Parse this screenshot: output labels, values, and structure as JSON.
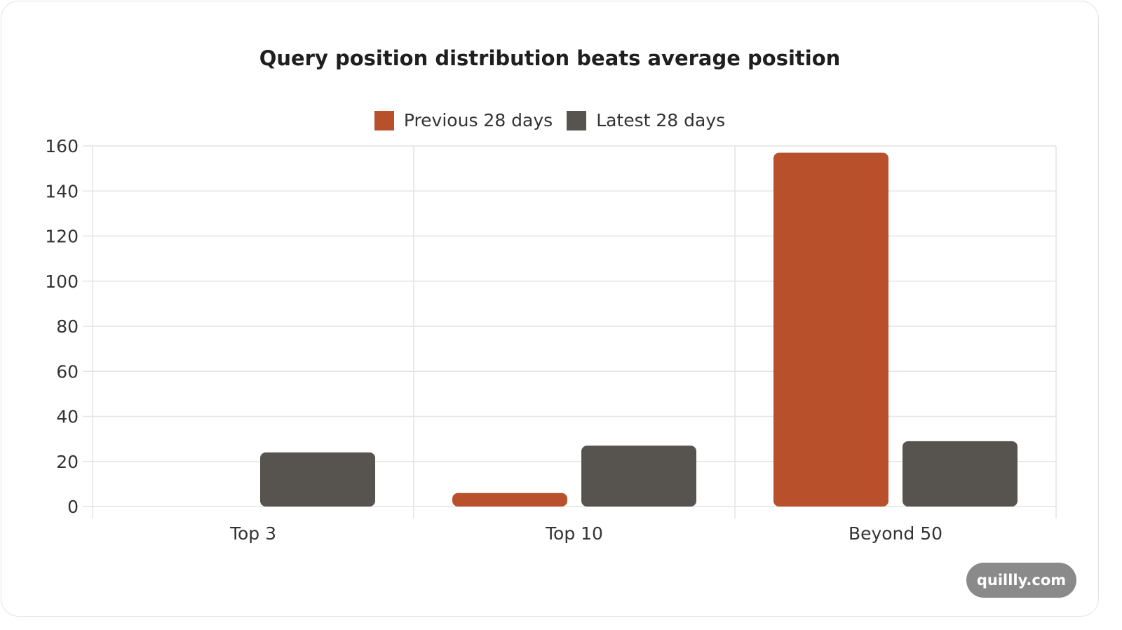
{
  "chart_data": {
    "type": "bar",
    "title": "Query position distribution beats average position",
    "categories": [
      "Top 3",
      "Top 10",
      "Beyond 50"
    ],
    "series": [
      {
        "name": "Previous 28 days",
        "color": "#b9502c",
        "values": [
          0,
          6,
          157
        ]
      },
      {
        "name": "Latest 28 days",
        "color": "#57534e",
        "values": [
          24,
          27,
          29
        ]
      }
    ],
    "yticks": [
      0,
      20,
      40,
      60,
      80,
      100,
      120,
      140,
      160
    ],
    "ylim": [
      0,
      160
    ],
    "legend_position": "top",
    "grid": true
  },
  "watermark": "quillly.com"
}
